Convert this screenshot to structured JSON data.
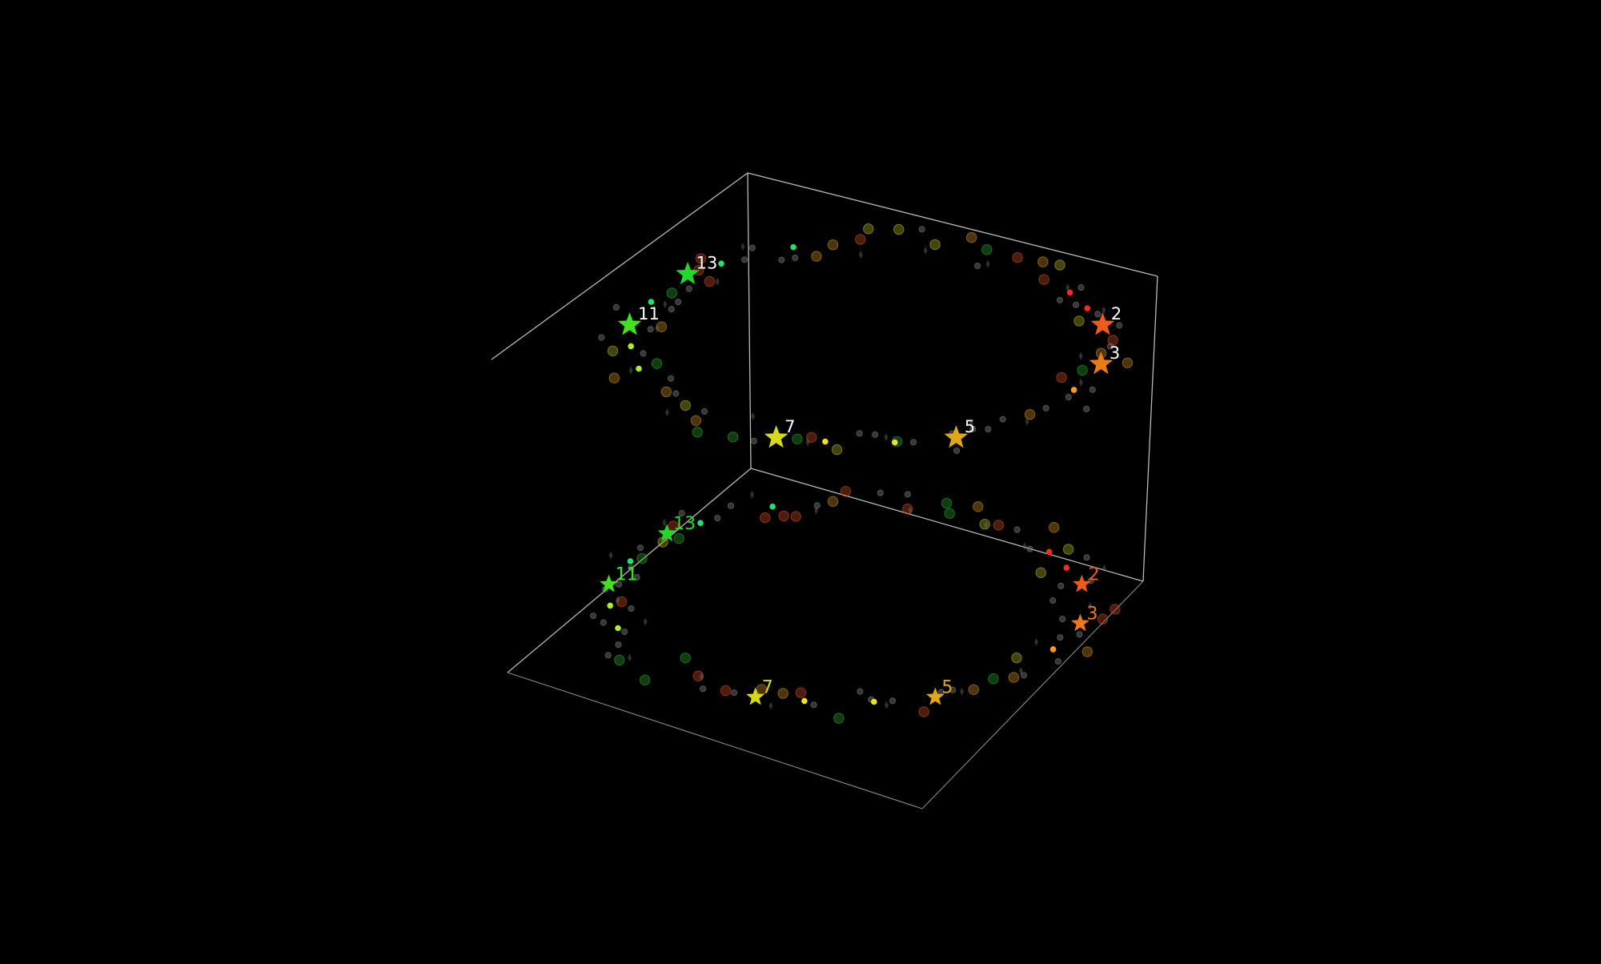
{
  "chart_data": {
    "type": "scatter",
    "projection": "3d",
    "background": "#000000",
    "axes_box_color": "#b8b8b8",
    "grid": false,
    "axes_visible": false,
    "z_levels": [
      0,
      1
    ],
    "ring_count": 2,
    "star_series": {
      "name": "",
      "marker": "star",
      "points": [
        {
          "label": "2",
          "angle_deg": -10,
          "color": "#f05a1a"
        },
        {
          "label": "3",
          "angle_deg": 12,
          "color": "#ee7a16"
        },
        {
          "label": "5",
          "angle_deg": 68,
          "color": "#e0a818"
        },
        {
          "label": "7",
          "angle_deg": 112,
          "color": "#d8d81a"
        },
        {
          "label": "11",
          "angle_deg": 190,
          "color": "#44e022"
        },
        {
          "label": "13",
          "angle_deg": 222,
          "color": "#22d828"
        }
      ]
    },
    "top_label_color": "#ffffff",
    "bottom_label_colors": "match-marker",
    "dot_series": {
      "name": "",
      "marker": "circle",
      "palette": {
        "red": "#ff2a1a",
        "orange": "#ff9a1a",
        "yellow": "#f0e020",
        "lime": "#a8f020",
        "green": "#22e070",
        "grey": "#777777",
        "faint_red": "#c84a20",
        "faint_orange": "#c88a20",
        "faint_yellow": "#b0b020",
        "faint_green": "#2aa02a"
      },
      "bright_angles_deg": [
        -30,
        -20,
        28,
        83,
        100,
        165,
        178,
        204,
        232,
        252
      ],
      "bright_colors": [
        "red",
        "red",
        "orange",
        "yellow",
        "yellow",
        "lime",
        "lime",
        "green",
        "green",
        "green"
      ]
    }
  }
}
